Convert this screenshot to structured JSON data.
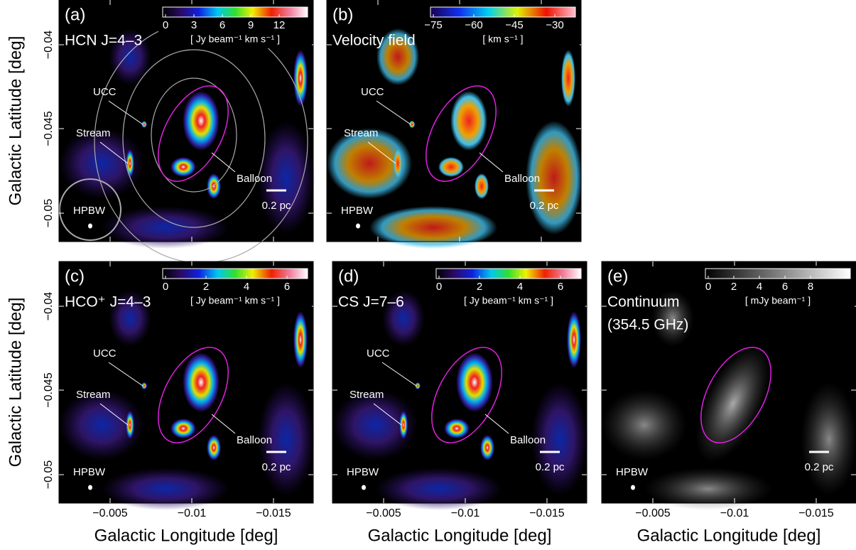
{
  "axis_labels": {
    "y": "Galactic Latitude  [deg]",
    "x": "Galactic Longitude  [deg]"
  },
  "y_ticks": [
    "−0.04",
    "−0.045",
    "−0.05"
  ],
  "x_ticks": [
    "−0.005",
    "−0.01",
    "−0.015"
  ],
  "panels": [
    {
      "tag": "(a)",
      "title": [
        "HCN J=4–3"
      ],
      "colorbar": {
        "ticks": [
          "0",
          "3",
          "6",
          "9",
          "12"
        ],
        "unit": "[ Jy beam⁻¹ km s⁻¹ ]"
      },
      "labels": {
        "ucc": "UCC",
        "stream": "Stream",
        "balloon": "Balloon"
      },
      "hpbw": "HPBW",
      "scale": "0.2 pc"
    },
    {
      "tag": "(b)",
      "title": [
        "Velocity field"
      ],
      "colorbar": {
        "ticks": [
          "−75",
          "−60",
          "−45",
          "−30"
        ],
        "unit": "[ km s⁻¹ ]"
      },
      "labels": {
        "ucc": "UCC",
        "stream": "Stream",
        "balloon": "Balloon"
      },
      "hpbw": "HPBW",
      "scale": "0.2 pc"
    },
    {
      "tag": "(c)",
      "title": [
        "HCO⁺ J=4–3"
      ],
      "colorbar": {
        "ticks": [
          "0",
          "2",
          "4",
          "6"
        ],
        "unit": "[ Jy beam⁻¹ km s⁻¹ ]"
      },
      "labels": {
        "ucc": "UCC",
        "stream": "Stream",
        "balloon": "Balloon"
      },
      "hpbw": "HPBW",
      "scale": "0.2 pc"
    },
    {
      "tag": "(d)",
      "title": [
        "CS J=7–6"
      ],
      "colorbar": {
        "ticks": [
          "0",
          "2",
          "4",
          "6"
        ],
        "unit": "[ Jy beam⁻¹ km s⁻¹ ]"
      },
      "labels": {
        "ucc": "UCC",
        "stream": "Stream",
        "balloon": "Balloon"
      },
      "hpbw": "HPBW",
      "scale": "0.2 pc"
    },
    {
      "tag": "(e)",
      "title": [
        "Continuum",
        "(354.5 GHz)"
      ],
      "colorbar": {
        "ticks": [
          "0",
          "2",
          "4",
          "6",
          "8"
        ],
        "unit": "[ mJy beam⁻¹ ]"
      },
      "hpbw": "HPBW",
      "scale": "0.2 pc"
    }
  ]
}
